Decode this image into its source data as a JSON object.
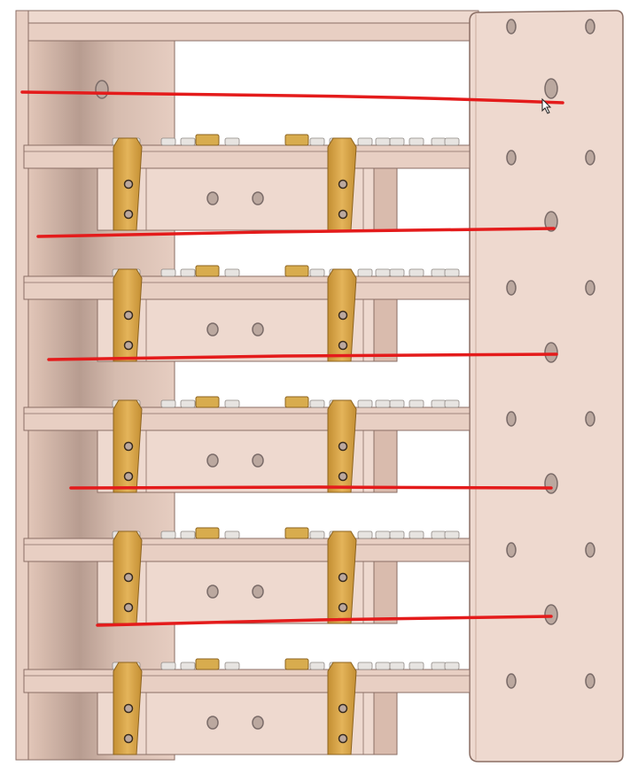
{
  "drawing": {
    "subject": "tiered-rack-cad-view",
    "shelf_count": 5,
    "annotation_line_count": 5,
    "colors": {
      "background": "#ffffff",
      "panel": "#e8cfc3",
      "panel_face": "#eed9cf",
      "panel_edge": "#8a6e64",
      "panel_shadow": "#d9bbad",
      "hole": "#7a6b68",
      "hole_fill": "#bba89f",
      "strap": "#d9a545",
      "strap_edge": "#8c6320",
      "brass": "#d8ac4e",
      "screw": "#e7e4e1",
      "annotation": "#e41b1b"
    }
  }
}
